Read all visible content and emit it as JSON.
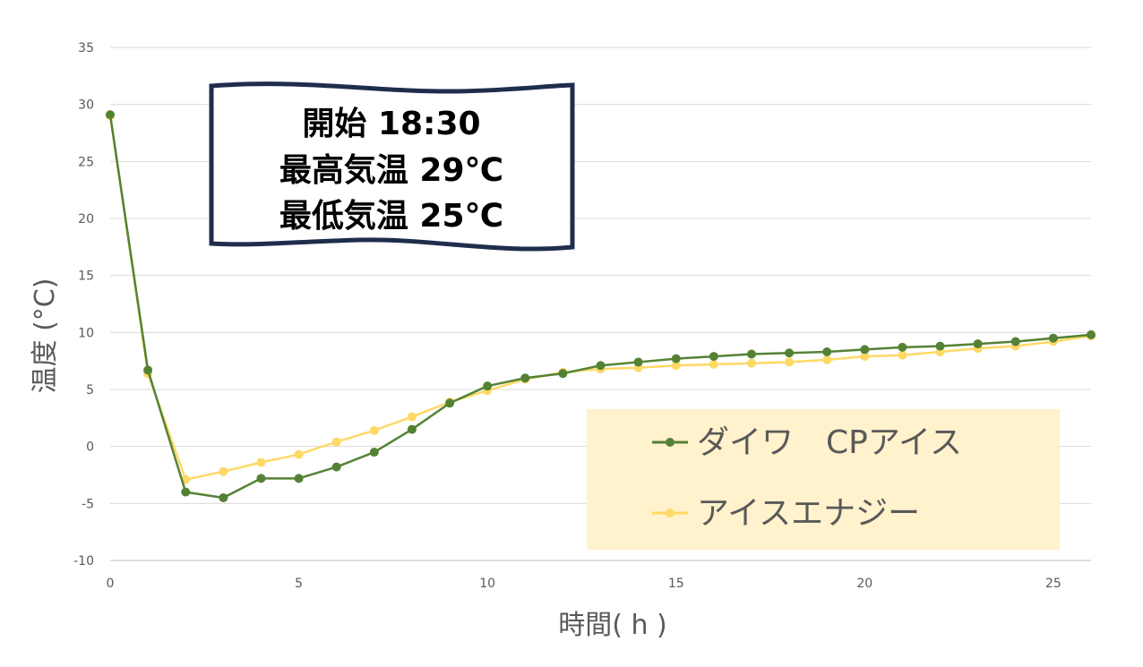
{
  "chart_data": {
    "type": "line",
    "xlabel": "時間( h )",
    "ylabel": "温度 (°C)",
    "xlim": [
      0,
      26
    ],
    "ylim": [
      -10,
      35
    ],
    "x_ticks": [
      0,
      5,
      10,
      15,
      20,
      25
    ],
    "y_ticks": [
      -10,
      -5,
      0,
      5,
      10,
      15,
      20,
      25,
      30,
      35
    ],
    "grid": true,
    "legend_position": "bottom-right",
    "x": [
      0,
      1,
      2,
      3,
      4,
      5,
      6,
      7,
      8,
      9,
      10,
      11,
      12,
      13,
      14,
      15,
      16,
      17,
      18,
      19,
      20,
      21,
      22,
      23,
      24,
      25,
      26
    ],
    "series": [
      {
        "name": "ダイワ　CPアイス",
        "color": "#548235",
        "values": [
          29.1,
          6.7,
          -4.0,
          -4.5,
          -2.8,
          -2.8,
          -1.8,
          -0.5,
          1.5,
          3.8,
          5.3,
          6.0,
          6.4,
          7.1,
          7.4,
          7.7,
          7.9,
          8.1,
          8.2,
          8.3,
          8.5,
          8.7,
          8.8,
          9.0,
          9.2,
          9.5,
          9.8
        ]
      },
      {
        "name": "アイスエナジー",
        "color": "#FFD966",
        "values": [
          29.0,
          6.4,
          -2.9,
          -2.2,
          -1.4,
          -0.7,
          0.4,
          1.4,
          2.6,
          3.9,
          4.9,
          5.9,
          6.5,
          6.8,
          6.9,
          7.1,
          7.2,
          7.3,
          7.4,
          7.6,
          7.9,
          8.0,
          8.3,
          8.6,
          8.8,
          9.2,
          9.7
        ]
      }
    ],
    "annotation": {
      "lines": [
        "開始 18:30",
        "最高気温 29℃",
        "最低気温 25℃"
      ]
    },
    "colors": {
      "grid": "#D9D9D9",
      "legend_background": "#FFF2CC",
      "callout_border": "#1F2D4D"
    }
  }
}
